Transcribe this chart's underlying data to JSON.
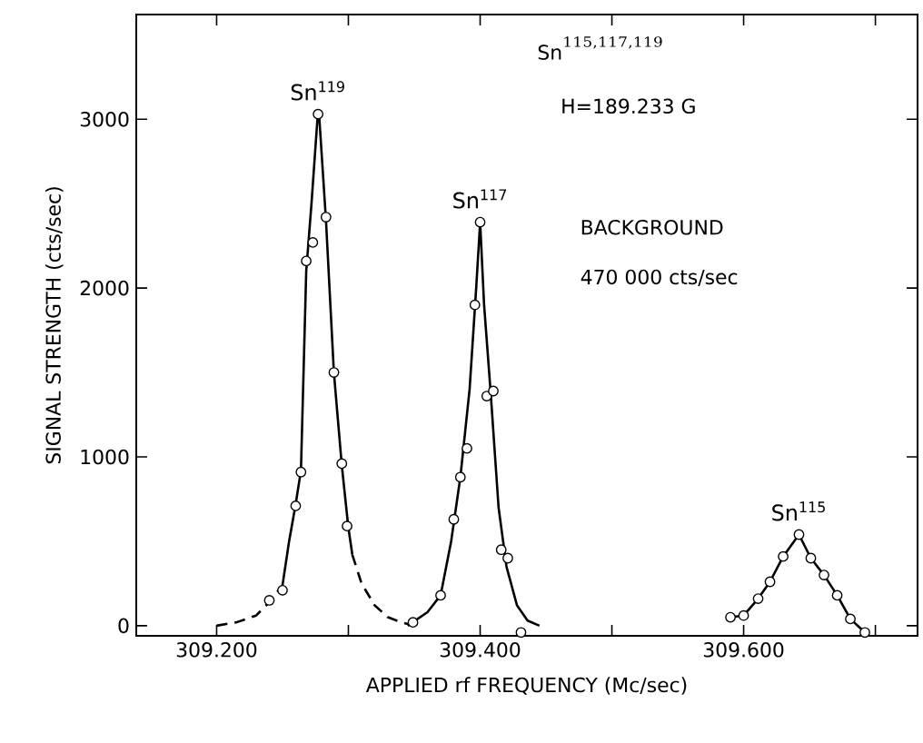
{
  "chart_data": {
    "type": "scatter",
    "xlabel": "APPLIED rf FREQUENCY (Mc/sec)",
    "ylabel": "SIGNAL STRENGTH (cts/sec)",
    "xlim": [
      309.139,
      309.732
    ],
    "ylim": [
      -60,
      3620
    ],
    "xticks": [
      {
        "value": 309.2,
        "label": "309.200"
      },
      {
        "value": 309.3,
        "label": null
      },
      {
        "value": 309.4,
        "label": "309.400"
      },
      {
        "value": 309.5,
        "label": null
      },
      {
        "value": 309.6,
        "label": "309.600"
      },
      {
        "value": 309.7,
        "label": null
      }
    ],
    "yticks": [
      0,
      1000,
      2000,
      3000
    ],
    "grid": false,
    "series": [
      {
        "marker": "circle",
        "color": "#000000",
        "x": [
          309.24,
          309.25,
          309.26,
          309.264,
          309.268,
          309.273,
          309.277,
          309.283,
          309.289,
          309.295,
          309.299
        ],
        "values": [
          150,
          210,
          710,
          910,
          2160,
          2270,
          3030,
          2420,
          1500,
          960,
          590
        ]
      },
      {
        "marker": "circle",
        "color": "#000000",
        "x": [
          309.349,
          309.37,
          309.38,
          309.385,
          309.39,
          309.396,
          309.4,
          309.405,
          309.41,
          309.416,
          309.421,
          309.431
        ],
        "values": [
          20,
          180,
          630,
          880,
          1050,
          1900,
          2390,
          1360,
          1390,
          450,
          400,
          -40
        ]
      },
      {
        "type": "line",
        "marker": "circle",
        "line_style": "solid",
        "color": "#000000",
        "x": [
          309.59,
          309.6,
          309.611,
          309.62,
          309.63,
          309.642,
          309.651,
          309.661,
          309.671,
          309.681,
          309.692
        ],
        "values": [
          50,
          60,
          160,
          260,
          410,
          540,
          400,
          300,
          180,
          40,
          -40
        ]
      },
      {
        "type": "line",
        "marker": "none",
        "line_style": "dashed",
        "color": "#000000",
        "x": [
          309.2,
          309.215,
          309.23,
          309.24,
          309.25
        ],
        "values": [
          0,
          20,
          60,
          140,
          240
        ]
      },
      {
        "type": "line",
        "marker": "none",
        "line_style": "solid",
        "color": "#000000",
        "x": [
          309.25,
          309.255,
          309.26,
          309.264,
          309.268,
          309.272,
          309.2765,
          309.278,
          309.283,
          309.289,
          309.295,
          309.3,
          309.303
        ],
        "values": [
          240,
          500,
          720,
          920,
          2100,
          2500,
          3000,
          3000,
          2400,
          1500,
          950,
          580,
          420
        ]
      },
      {
        "type": "line",
        "marker": "none",
        "line_style": "dashed",
        "color": "#000000",
        "x": [
          309.303,
          309.31,
          309.32,
          309.33,
          309.34,
          309.35
        ],
        "values": [
          420,
          250,
          120,
          50,
          20,
          0
        ]
      },
      {
        "type": "line",
        "marker": "none",
        "line_style": "solid",
        "color": "#000000",
        "x": [
          309.345,
          309.36,
          309.37,
          309.378,
          309.385,
          309.392,
          309.397,
          309.4,
          309.403,
          309.408,
          309.414,
          309.42,
          309.428,
          309.436,
          309.445
        ],
        "values": [
          0,
          80,
          180,
          500,
          880,
          1400,
          2000,
          2390,
          1900,
          1380,
          700,
          350,
          120,
          30,
          0
        ]
      }
    ],
    "annotations": [
      {
        "text": "Sn$^{119}$",
        "x": 309.277,
        "y": 3030
      },
      {
        "text": "Sn$^{117}$",
        "x": 309.4,
        "y": 2390
      },
      {
        "text": "Sn$^{115}$",
        "x": 309.642,
        "y": 540
      },
      "\\mathrm{Sn}^{115,117,119}",
      "H=189.233 G",
      "BACKGROUND",
      "470 000 cts/sec"
    ]
  }
}
